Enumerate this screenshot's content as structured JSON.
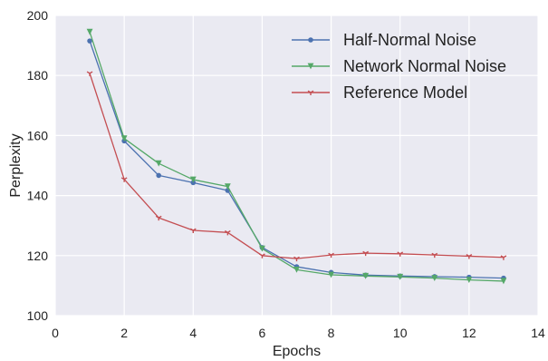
{
  "chart_data": {
    "type": "line",
    "title": "",
    "xlabel": "Epochs",
    "ylabel": "Perplexity",
    "xlim": [
      0,
      14
    ],
    "ylim": [
      100,
      200
    ],
    "xticks": [
      "0",
      "2",
      "4",
      "6",
      "8",
      "10",
      "12",
      "14"
    ],
    "yticks": [
      "100",
      "120",
      "140",
      "160",
      "180",
      "200"
    ],
    "grid": true,
    "legend_position": "top-right",
    "background": "#eaeaf2",
    "x": [
      1,
      2,
      3,
      4,
      5,
      6,
      7,
      8,
      9,
      10,
      11,
      12,
      13
    ],
    "series": [
      {
        "name": "Half-Normal Noise",
        "color": "#4c72b0",
        "marker": "circle",
        "values": [
          191.5,
          158.2,
          146.7,
          144.3,
          141.7,
          122.7,
          116.3,
          114.4,
          113.5,
          113.2,
          113.0,
          112.8,
          112.5
        ]
      },
      {
        "name": "Network Normal Noise",
        "color": "#55a868",
        "marker": "triangle-down",
        "values": [
          194.5,
          159.0,
          150.7,
          145.3,
          143.0,
          122.3,
          115.3,
          113.6,
          113.2,
          112.9,
          112.5,
          111.9,
          111.5
        ]
      },
      {
        "name": "Reference Model",
        "color": "#c44e52",
        "marker": "tri",
        "values": [
          180.7,
          145.4,
          132.6,
          128.4,
          127.7,
          120.0,
          119.0,
          120.2,
          120.8,
          120.6,
          120.2,
          119.8,
          119.4
        ]
      }
    ]
  }
}
